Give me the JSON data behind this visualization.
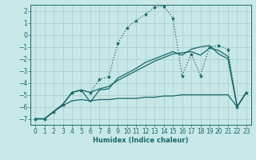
{
  "bg_color": "#c8e8e8",
  "grid_color": "#a8d0d0",
  "line_color": "#1a6868",
  "xlabel": "Humidex (Indice chaleur)",
  "xlim": [
    -0.5,
    23.5
  ],
  "ylim": [
    -7.5,
    2.5
  ],
  "yticks": [
    -7,
    -6,
    -5,
    -4,
    -3,
    -2,
    -1,
    0,
    1,
    2
  ],
  "xticks": [
    0,
    1,
    2,
    3,
    4,
    5,
    6,
    7,
    8,
    9,
    10,
    11,
    12,
    13,
    14,
    15,
    16,
    17,
    18,
    19,
    20,
    21,
    22,
    23
  ],
  "s1_x": [
    0,
    1,
    2,
    3,
    4,
    5,
    6,
    7,
    8,
    9,
    10,
    11,
    12,
    13,
    14,
    15,
    16,
    17,
    18,
    19,
    20,
    21,
    22,
    23
  ],
  "s1_y": [
    -7,
    -7,
    -6.4,
    -5.8,
    -4.8,
    -4.6,
    -4.8,
    -3.7,
    -3.5,
    -0.7,
    0.6,
    1.2,
    1.7,
    2.3,
    2.4,
    1.4,
    -3.4,
    -1.6,
    -3.4,
    -1.0,
    -0.9,
    -1.2,
    -6.0,
    -4.8
  ],
  "s2_x": [
    0,
    1,
    2,
    3,
    4,
    5,
    6,
    7,
    8,
    9,
    10,
    11,
    12,
    13,
    14,
    15,
    16,
    17,
    18,
    19,
    20,
    21,
    22,
    23
  ],
  "s2_y": [
    -7,
    -7,
    -6.4,
    -5.8,
    -4.8,
    -4.6,
    -4.8,
    -4.5,
    -4.3,
    -3.8,
    -3.4,
    -3.0,
    -2.6,
    -2.2,
    -1.9,
    -1.6,
    -1.5,
    -1.4,
    -1.7,
    -1.1,
    -1.3,
    -1.8,
    -6.0,
    -4.8
  ],
  "s3_x": [
    0,
    1,
    2,
    3,
    4,
    5,
    6,
    7,
    8,
    9,
    10,
    11,
    12,
    13,
    14,
    15,
    16,
    17,
    18,
    19,
    20,
    21,
    22,
    23
  ],
  "s3_y": [
    -7,
    -7,
    -6.4,
    -5.8,
    -4.8,
    -4.6,
    -5.6,
    -4.6,
    -4.5,
    -3.6,
    -3.2,
    -2.8,
    -2.3,
    -2.0,
    -1.7,
    -1.4,
    -1.7,
    -1.2,
    -1.0,
    -0.9,
    -1.6,
    -2.0,
    -6.0,
    -4.8
  ],
  "s4_x": [
    0,
    1,
    2,
    3,
    4,
    5,
    6,
    7,
    8,
    9,
    10,
    11,
    12,
    13,
    14,
    15,
    16,
    17,
    18,
    19,
    20,
    21,
    22,
    23
  ],
  "s4_y": [
    -7,
    -7,
    -6.4,
    -5.9,
    -5.5,
    -5.4,
    -5.5,
    -5.4,
    -5.4,
    -5.3,
    -5.3,
    -5.3,
    -5.2,
    -5.2,
    -5.1,
    -5.1,
    -5.0,
    -5.0,
    -5.0,
    -5.0,
    -5.0,
    -5.0,
    -6.0,
    -4.8
  ]
}
